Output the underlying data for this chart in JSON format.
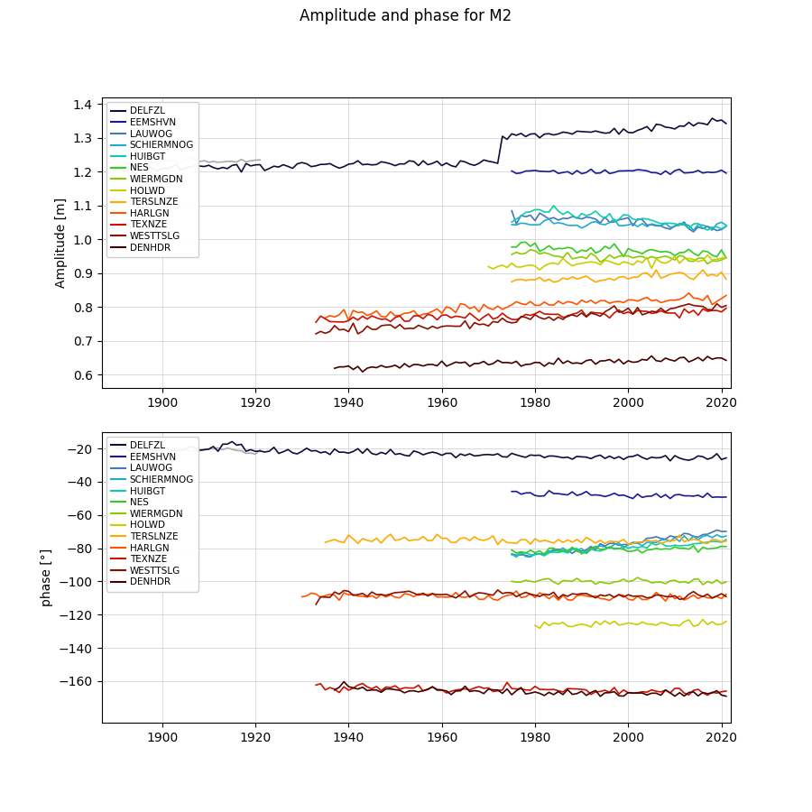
{
  "title": "Amplitude and phase for M2",
  "ylabel_amp": "Amplitude [m]",
  "ylabel_phase": "phase [°]",
  "stations": [
    "DELFZL",
    "EEMSHVN",
    "LAUWOG",
    "SCHIERMNOG",
    "HUIBGT",
    "NES",
    "WIERMGDN",
    "HOLWD",
    "TERSLNZE",
    "HARLGN",
    "TEXNZE",
    "WESTTSLG",
    "DENHDR"
  ],
  "colors": {
    "DELFZL": "#1a0a3a",
    "EEMSHVN": "#1a1a99",
    "LAUWOG": "#4477bb",
    "SCHIERMNOG": "#22aacc",
    "HUIBGT": "#11ccaa",
    "NES": "#33cc22",
    "WIERMGDN": "#88cc00",
    "HOLWD": "#cccc00",
    "TERSLNZE": "#ffaa00",
    "HARLGN": "#ff5500",
    "TEXNZE": "#cc1100",
    "WESTTSLG": "#881100",
    "DENHDR": "#440000",
    "GRAY": "#aaaaaa"
  },
  "amp_ylim": [
    0.56,
    1.42
  ],
  "amp_yticks": [
    0.6,
    0.7,
    0.8,
    0.9,
    1.0,
    1.1,
    1.2,
    1.3,
    1.4
  ],
  "phase_ylim": [
    -185,
    -10
  ],
  "phase_yticks": [
    -160,
    -140,
    -120,
    -100,
    -80,
    -60,
    -40,
    -20
  ],
  "xlim": [
    1887,
    2022
  ],
  "xticks": [
    1900,
    1920,
    1940,
    1960,
    1980,
    2000,
    2020
  ]
}
